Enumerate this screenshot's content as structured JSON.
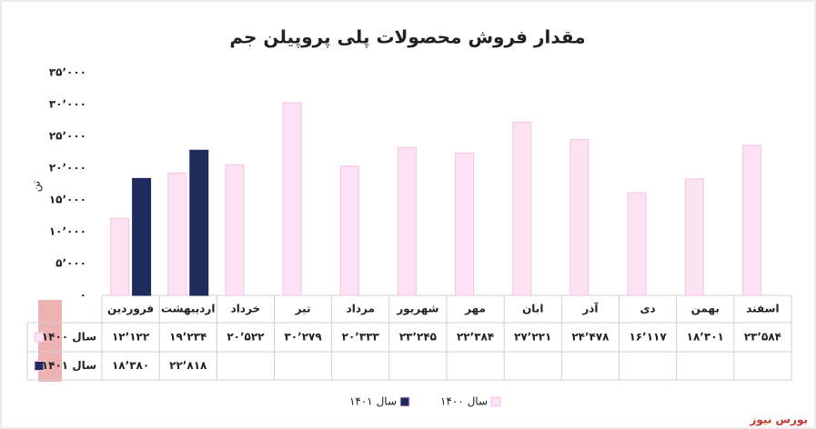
{
  "chart_data": {
    "type": "bar",
    "title": "مقدار فروش محصولات پلی پروپیلن جم",
    "y_label": "تن",
    "categories": [
      "فروردین",
      "اردیبهشت",
      "خرداد",
      "تیر",
      "مرداد",
      "شهریور",
      "مهر",
      "ابان",
      "آذر",
      "دی",
      "بهمن",
      "اسفند"
    ],
    "series": [
      {
        "name": "سال ۱۴۰۰",
        "color": "#fde2f4",
        "values": [
          12122,
          19234,
          20522,
          30279,
          20333,
          23245,
          22384,
          27221,
          24478,
          16117,
          18301,
          23584
        ],
        "value_labels": [
          "۱۲٬۱۲۲",
          "۱۹٬۲۳۴",
          "۲۰٬۵۲۲",
          "۳۰٬۲۷۹",
          "۲۰٬۳۳۳",
          "۲۳٬۲۴۵",
          "۲۲٬۳۸۴",
          "۲۷٬۲۲۱",
          "۲۴٬۴۷۸",
          "۱۶٬۱۱۷",
          "۱۸٬۳۰۱",
          "۲۳٬۵۸۴"
        ]
      },
      {
        "name": "سال ۱۴۰۱",
        "color": "#1f2b5c",
        "values": [
          18380,
          22818,
          null,
          null,
          null,
          null,
          null,
          null,
          null,
          null,
          null,
          null
        ],
        "value_labels": [
          "۱۸٬۳۸۰",
          "۲۲٬۸۱۸",
          null,
          null,
          null,
          null,
          null,
          null,
          null,
          null,
          null,
          null
        ]
      }
    ],
    "ylim": [
      0,
      35000
    ],
    "yticks": [
      {
        "value": 0,
        "label": "۰"
      },
      {
        "value": 5000,
        "label": "۵٬۰۰۰"
      },
      {
        "value": 10000,
        "label": "۱۰٬۰۰۰"
      },
      {
        "value": 15000,
        "label": "۱۵٬۰۰۰"
      },
      {
        "value": 20000,
        "label": "۲۰٬۰۰۰"
      },
      {
        "value": 25000,
        "label": "۲۵٬۰۰۰"
      },
      {
        "value": 30000,
        "label": "۳۰٬۰۰۰"
      },
      {
        "value": 35000,
        "label": "۳۵٬۰۰۰"
      }
    ],
    "grid": false,
    "source": "بورس نیوز"
  }
}
